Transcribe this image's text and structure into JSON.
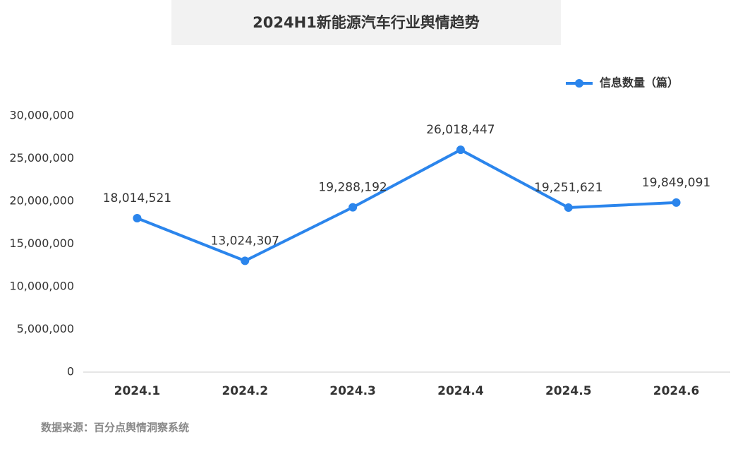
{
  "chart_data": {
    "type": "line",
    "title": "2024H1新能源汽车行业舆情趋势",
    "categories": [
      "2024.1",
      "2024.2",
      "2024.3",
      "2024.4",
      "2024.5",
      "2024.6"
    ],
    "series": [
      {
        "name": "信息数量（篇）",
        "color": "#2b85ec",
        "values": [
          18014521,
          13024307,
          19288192,
          26018447,
          19251621,
          19849091
        ],
        "value_labels": [
          "18,014,521",
          "13,024,307",
          "19,288,192",
          "26,018,447",
          "19,251,621",
          "19,849,091"
        ]
      }
    ],
    "ylim": [
      0,
      30000000
    ],
    "yticks": [
      0,
      {
        "value": 5000000,
        "label": "5,000,000"
      },
      {
        "value": 10000000,
        "label": "10,000,000"
      },
      {
        "value": 15000000,
        "label": "15,000,000"
      },
      {
        "value": 20000000,
        "label": "20,000,000"
      },
      {
        "value": 25000000,
        "label": "25,000,000"
      },
      {
        "value": 30000000,
        "label": "30,000,000"
      }
    ],
    "grid": false,
    "legend": "top-right",
    "source": "数据来源：百分点舆情洞察系统"
  }
}
